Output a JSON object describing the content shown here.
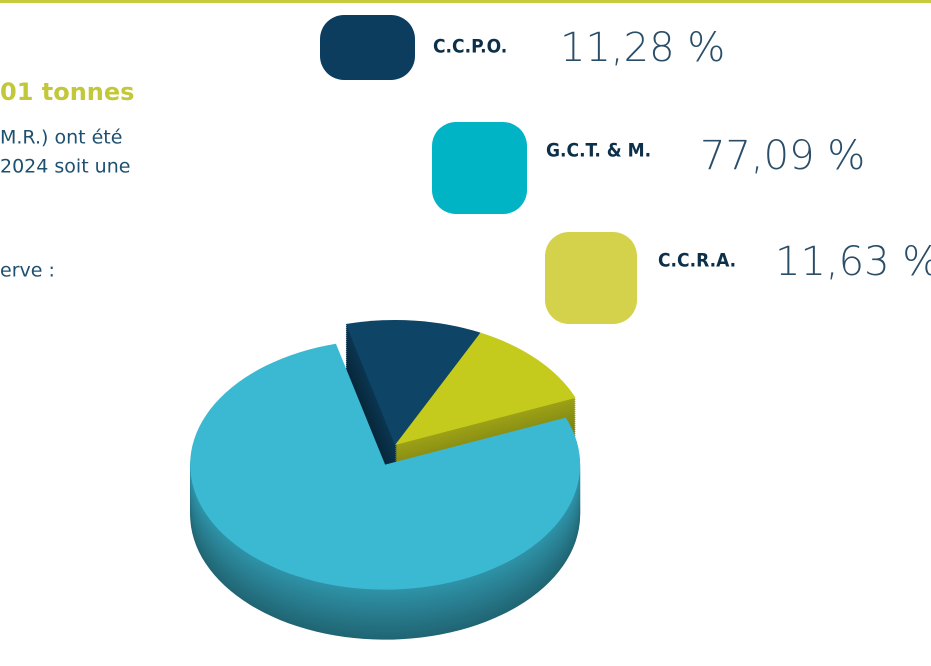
{
  "text_fragments": [
    "01 tonnes",
    "M.R.) ont été",
    "2024 soit une",
    "erve :"
  ],
  "chart_data": {
    "type": "pie",
    "categories": [
      "C.C.P.O.",
      "G.C.T. & M.",
      "C.C.R.A."
    ],
    "values": [
      11.28,
      77.09,
      11.63
    ],
    "value_labels": [
      "11,28 %",
      "77,09 %",
      "11,63 %"
    ],
    "colors": [
      "#0e4466",
      "#3bb8d2",
      "#c4cb1c"
    ],
    "legend_colors": [
      "#0c3d5f",
      "#00b4c6",
      "#d3d24a"
    ]
  }
}
